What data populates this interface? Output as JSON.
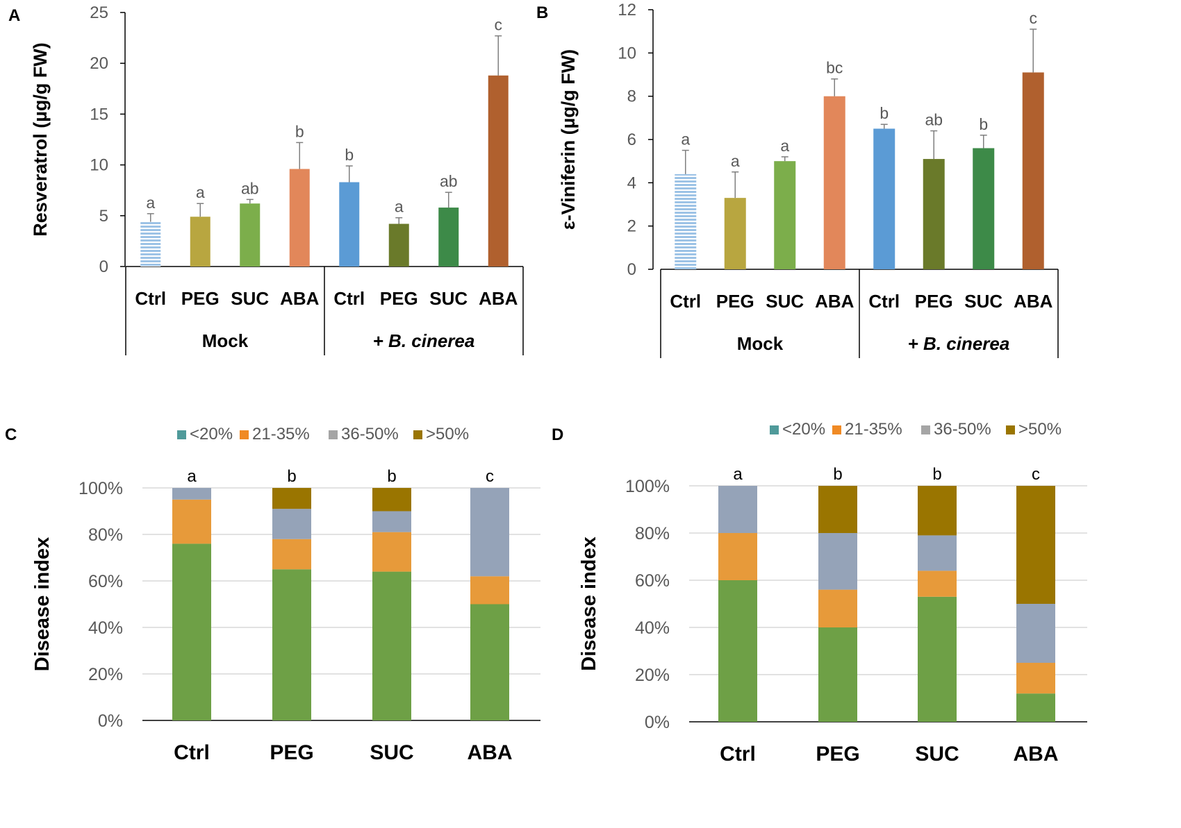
{
  "colors": {
    "axis": "#000000",
    "grid": "#d9d9d9",
    "tick_text": "#595959",
    "letter_text": "#595959",
    "bar_ctrl_mock": "#9dc3e6",
    "bar_peg": "#b8a640",
    "bar_suc": "#7cae4b",
    "bar_aba": "#e2875a",
    "bar_ctrl_bc": "#5b9bd5",
    "bar_peg_bc": "#6a7a2a",
    "bar_suc_bc": "#3d8a48",
    "bar_aba_bc": "#b0602e",
    "seg_lt20": "#6ea046",
    "seg_21_35": "#e79a3a",
    "seg_36_50": "#95a3b8",
    "seg_gt50": "#9a7500",
    "legend_lt20": "#4f9a9a",
    "legend_21_35": "#f08a24",
    "legend_36_50": "#a5a5a5",
    "legend_gt50": "#9a7500"
  },
  "chart_data": [
    {
      "panel": "A",
      "type": "bar",
      "ylabel": "Resveratrol (µg/g FW)",
      "ylim": [
        0,
        25
      ],
      "yticks": [
        "0",
        "5",
        "10",
        "15",
        "20",
        "25"
      ],
      "categories": [
        "Ctrl",
        "PEG",
        "SUC",
        "ABA",
        "Ctrl",
        "PEG",
        "SUC",
        "ABA"
      ],
      "groups": [
        "Mock",
        "+ B. cinerea"
      ],
      "values": [
        4.4,
        4.9,
        6.2,
        9.6,
        8.3,
        4.2,
        5.8,
        18.8
      ],
      "errors": [
        0.8,
        1.3,
        0.4,
        2.6,
        1.6,
        0.6,
        1.5,
        3.9
      ],
      "letters": [
        "a",
        "a",
        "ab",
        "b",
        "b",
        "a",
        "ab",
        "c"
      ]
    },
    {
      "panel": "B",
      "type": "bar",
      "ylabel": "ε-Viniferin (µg/g FW)",
      "ylim": [
        0,
        12
      ],
      "yticks": [
        "0",
        "2",
        "4",
        "6",
        "8",
        "10",
        "12"
      ],
      "categories": [
        "Ctrl",
        "PEG",
        "SUC",
        "ABA",
        "Ctrl",
        "PEG",
        "SUC",
        "ABA"
      ],
      "groups": [
        "Mock",
        "+ B. cinerea"
      ],
      "values": [
        4.4,
        3.3,
        5.0,
        8.0,
        6.5,
        5.1,
        5.6,
        9.1
      ],
      "errors": [
        1.1,
        1.2,
        0.2,
        0.8,
        0.2,
        1.3,
        0.6,
        2.0
      ],
      "letters": [
        "a",
        "a",
        "a",
        "bc",
        "b",
        "ab",
        "b",
        "c"
      ]
    },
    {
      "panel": "C",
      "type": "bar",
      "stacked": true,
      "ylabel": "Disease index",
      "ylim": [
        0,
        100
      ],
      "yticks": [
        "0%",
        "20%",
        "40%",
        "60%",
        "80%",
        "100%"
      ],
      "legend": [
        "<20%",
        "21-35%",
        "36-50%",
        ">50%"
      ],
      "categories": [
        "Ctrl",
        "PEG",
        "SUC",
        "ABA"
      ],
      "series": [
        {
          "name": "<20%",
          "values": [
            76,
            65,
            64,
            50
          ]
        },
        {
          "name": "21-35%",
          "values": [
            19,
            13,
            17,
            12
          ]
        },
        {
          "name": "36-50%",
          "values": [
            5,
            13,
            9,
            38
          ]
        },
        {
          "name": ">50%",
          "values": [
            0,
            9,
            10,
            0
          ]
        }
      ],
      "letters": [
        "a",
        "b",
        "b",
        "c"
      ]
    },
    {
      "panel": "D",
      "type": "bar",
      "stacked": true,
      "ylabel": "Disease index",
      "ylim": [
        0,
        100
      ],
      "yticks": [
        "0%",
        "20%",
        "40%",
        "60%",
        "80%",
        "100%"
      ],
      "legend": [
        "<20%",
        "21-35%",
        "36-50%",
        ">50%"
      ],
      "categories": [
        "Ctrl",
        "PEG",
        "SUC",
        "ABA"
      ],
      "series": [
        {
          "name": "<20%",
          "values": [
            60,
            40,
            53,
            12
          ]
        },
        {
          "name": "21-35%",
          "values": [
            20,
            16,
            11,
            13
          ]
        },
        {
          "name": "36-50%",
          "values": [
            20,
            24,
            15,
            25
          ]
        },
        {
          "name": ">50%",
          "values": [
            0,
            20,
            21,
            50
          ]
        }
      ],
      "letters": [
        "a",
        "b",
        "b",
        "c"
      ]
    }
  ]
}
